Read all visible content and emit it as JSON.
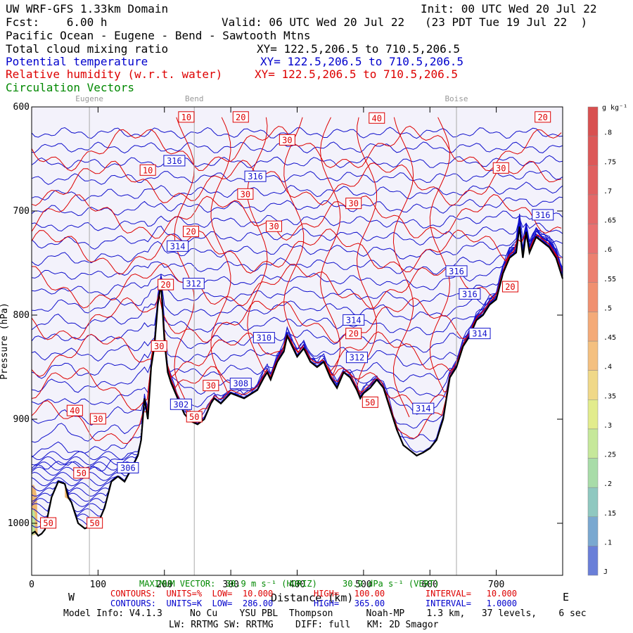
{
  "header": {
    "title": "UW WRF-GFS 1.33km Domain",
    "init": "Init: 00 UTC Wed 20 Jul 22",
    "fcst": "Fcst:    6.00 h",
    "valid": "Valid: 06 UTC Wed 20 Jul 22   (23 PDT Tue 19 Jul 22  )",
    "region": "Pacific Ocean - Eugene - Bend - Sawtooth Mtns",
    "var1": "Total cloud mixing ratio",
    "var1_xy": "XY= 122.5,206.5 to 710.5,206.5",
    "var2": "Potential temperature",
    "var2_xy": "XY= 122.5,206.5 to 710.5,206.5",
    "var3": "Relative humidity (w.r.t. water)",
    "var3_xy": "XY= 122.5,206.5 to 710.5,206.5",
    "var4": "Circulation Vectors"
  },
  "colorbar": {
    "unit": "g kg⁻¹"
  },
  "footer": {
    "max_vector": "MAXIMUM VECTOR:  30.9 m s⁻¹ (HORIZ)     30.9 dPa s⁻¹ (VERT)",
    "xlabel": "Distance (km)",
    "west": "W",
    "east": "E",
    "rh_contours": "CONTOURS:  UNITS=%  LOW=  10.000        HIGH=   100.00        INTERVAL=   10.000",
    "th_contours": "CONTOURS:  UNITS=K  LOW=  286.00        HIGH=   365.00        INTERVAL=   1.0000",
    "model_info": "Model Info: V4.1.3     No Cu    YSU PBL  Thompson      Noah-MP    1.3 km,   37 levels,    6 sec",
    "model_info2": "LW: RRTMG SW: RRTMG    DIFF: full   KM: 2D Smagor"
  },
  "chart_data": {
    "type": "cross-section contour",
    "xlabel": "Distance (km)",
    "ylabel": "Pressure (hPa)",
    "xlim": [
      0,
      800
    ],
    "ylim": [
      1050,
      600
    ],
    "x_ticks": [
      0,
      100,
      200,
      300,
      400,
      500,
      600,
      700
    ],
    "y_ticks": [
      600,
      700,
      800,
      900,
      1000
    ],
    "locations": [
      {
        "name": "Eugene",
        "x": 87
      },
      {
        "name": "Bend",
        "x": 245
      },
      {
        "name": "Boise",
        "x": 640
      }
    ],
    "colorbar_ticks": [
      "J",
      ".1",
      ".15",
      ".2",
      ".25",
      ".3",
      ".35",
      ".4",
      ".45",
      ".5",
      ".55",
      ".6",
      ".65",
      ".7",
      ".75",
      ".8"
    ],
    "colorbar_colors": [
      "#6a7fd8",
      "#7aa8d0",
      "#8fc8c0",
      "#a8dca8",
      "#c6e89a",
      "#e2ec8c",
      "#f0d888",
      "#f4c080",
      "#f4aa78",
      "#f09070",
      "#ec8070",
      "#e87070",
      "#e46868",
      "#e06060",
      "#dc5858",
      "#d85050"
    ],
    "terrain": [
      [
        0,
        1010
      ],
      [
        5,
        1008
      ],
      [
        10,
        1012
      ],
      [
        15,
        1010
      ],
      [
        20,
        1006
      ],
      [
        30,
        975
      ],
      [
        40,
        960
      ],
      [
        50,
        962
      ],
      [
        55,
        975
      ],
      [
        60,
        980
      ],
      [
        70,
        1000
      ],
      [
        80,
        1005
      ],
      [
        90,
        1003
      ],
      [
        100,
        1000
      ],
      [
        110,
        985
      ],
      [
        120,
        960
      ],
      [
        130,
        955
      ],
      [
        140,
        960
      ],
      [
        150,
        948
      ],
      [
        160,
        935
      ],
      [
        165,
        920
      ],
      [
        170,
        880
      ],
      [
        175,
        900
      ],
      [
        180,
        850
      ],
      [
        185,
        830
      ],
      [
        190,
        790
      ],
      [
        195,
        770
      ],
      [
        200,
        825
      ],
      [
        205,
        855
      ],
      [
        210,
        865
      ],
      [
        220,
        880
      ],
      [
        230,
        895
      ],
      [
        240,
        902
      ],
      [
        250,
        905
      ],
      [
        260,
        900
      ],
      [
        270,
        885
      ],
      [
        275,
        880
      ],
      [
        285,
        885
      ],
      [
        300,
        875
      ],
      [
        320,
        880
      ],
      [
        340,
        872
      ],
      [
        350,
        860
      ],
      [
        355,
        855
      ],
      [
        360,
        862
      ],
      [
        370,
        845
      ],
      [
        380,
        835
      ],
      [
        385,
        820
      ],
      [
        400,
        840
      ],
      [
        410,
        832
      ],
      [
        420,
        845
      ],
      [
        430,
        850
      ],
      [
        440,
        845
      ],
      [
        450,
        860
      ],
      [
        460,
        870
      ],
      [
        470,
        855
      ],
      [
        480,
        860
      ],
      [
        490,
        872
      ],
      [
        495,
        880
      ],
      [
        500,
        875
      ],
      [
        510,
        870
      ],
      [
        520,
        862
      ],
      [
        530,
        870
      ],
      [
        540,
        890
      ],
      [
        550,
        910
      ],
      [
        560,
        925
      ],
      [
        570,
        930
      ],
      [
        580,
        935
      ],
      [
        590,
        932
      ],
      [
        600,
        928
      ],
      [
        610,
        920
      ],
      [
        620,
        900
      ],
      [
        625,
        880
      ],
      [
        630,
        860
      ],
      [
        640,
        850
      ],
      [
        650,
        830
      ],
      [
        660,
        820
      ],
      [
        670,
        805
      ],
      [
        680,
        800
      ],
      [
        690,
        790
      ],
      [
        700,
        785
      ],
      [
        710,
        760
      ],
      [
        720,
        745
      ],
      [
        730,
        740
      ],
      [
        735,
        715
      ],
      [
        740,
        745
      ],
      [
        745,
        720
      ],
      [
        750,
        740
      ],
      [
        760,
        725
      ],
      [
        770,
        730
      ],
      [
        780,
        735
      ],
      [
        790,
        745
      ],
      [
        800,
        765
      ]
    ],
    "theta_labels": [
      {
        "v": "316",
        "x": 215,
        "p": 652
      },
      {
        "v": "316",
        "x": 337,
        "p": 667
      },
      {
        "v": "316",
        "x": 770,
        "p": 704
      },
      {
        "v": "314",
        "x": 220,
        "p": 734
      },
      {
        "v": "312",
        "x": 244,
        "p": 770
      },
      {
        "v": "316",
        "x": 640,
        "p": 758
      },
      {
        "v": "316",
        "x": 660,
        "p": 780
      },
      {
        "v": "314",
        "x": 485,
        "p": 805
      },
      {
        "v": "314",
        "x": 675,
        "p": 818
      },
      {
        "v": "310",
        "x": 350,
        "p": 822
      },
      {
        "v": "312",
        "x": 490,
        "p": 841
      },
      {
        "v": "308",
        "x": 315,
        "p": 866
      },
      {
        "v": "302",
        "x": 225,
        "p": 886
      },
      {
        "v": "314",
        "x": 590,
        "p": 890
      },
      {
        "v": "306",
        "x": 145,
        "p": 947
      }
    ],
    "rh_labels": [
      {
        "v": "10",
        "x": 233,
        "p": 610
      },
      {
        "v": "20",
        "x": 315,
        "p": 610
      },
      {
        "v": "40",
        "x": 520,
        "p": 611
      },
      {
        "v": "20",
        "x": 770,
        "p": 610
      },
      {
        "v": "30",
        "x": 385,
        "p": 632
      },
      {
        "v": "10",
        "x": 175,
        "p": 661
      },
      {
        "v": "30",
        "x": 707,
        "p": 659
      },
      {
        "v": "30",
        "x": 322,
        "p": 684
      },
      {
        "v": "30",
        "x": 485,
        "p": 693
      },
      {
        "v": "30",
        "x": 365,
        "p": 715
      },
      {
        "v": "20",
        "x": 240,
        "p": 720
      },
      {
        "v": "20",
        "x": 202,
        "p": 771
      },
      {
        "v": "20",
        "x": 721,
        "p": 773
      },
      {
        "v": "20",
        "x": 485,
        "p": 818
      },
      {
        "v": "30",
        "x": 192,
        "p": 830
      },
      {
        "v": "30",
        "x": 270,
        "p": 868
      },
      {
        "v": "40",
        "x": 65,
        "p": 892
      },
      {
        "v": "30",
        "x": 100,
        "p": 900
      },
      {
        "v": "50",
        "x": 245,
        "p": 898
      },
      {
        "v": "50",
        "x": 510,
        "p": 884
      },
      {
        "v": "50",
        "x": 75,
        "p": 952
      },
      {
        "v": "50",
        "x": 25,
        "p": 1000
      },
      {
        "v": "50",
        "x": 95,
        "p": 1000
      }
    ]
  }
}
